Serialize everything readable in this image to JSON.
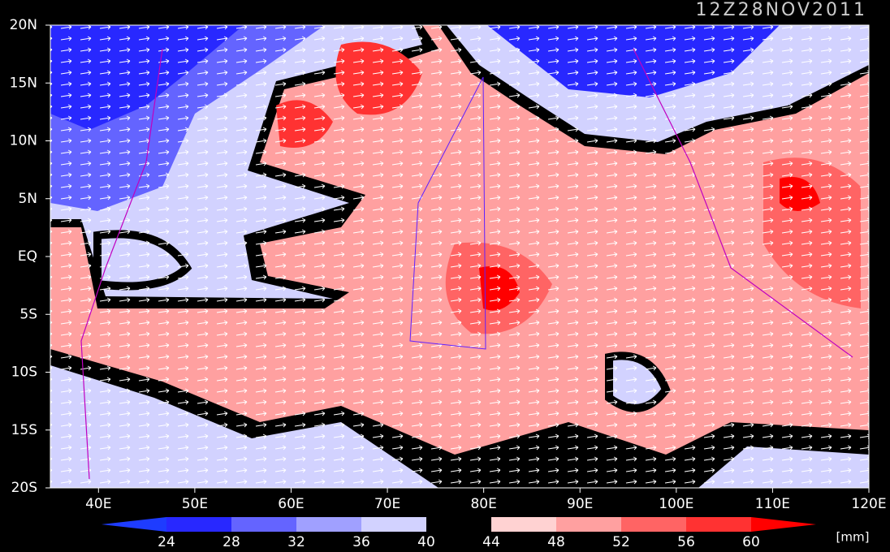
{
  "timestamp": "12Z28NOV2011",
  "lat_labels": [
    "20N",
    "15N",
    "10N",
    "5N",
    "EQ",
    "5S",
    "10S",
    "15S",
    "20S"
  ],
  "lon_labels": [
    "40E",
    "50E",
    "60E",
    "70E",
    "80E",
    "90E",
    "100E",
    "110E",
    "120E"
  ],
  "colorbar": {
    "levels": [
      24,
      28,
      32,
      36,
      40,
      44,
      48,
      52,
      56,
      60
    ],
    "colors": [
      "#1e3cff",
      "#2828ff",
      "#6464ff",
      "#a0a0ff",
      "#d2d2ff",
      "#000000",
      "#ffd2d2",
      "#ffa0a0",
      "#ff6464",
      "#ff3232",
      "#ff0000"
    ],
    "unit": "[mm]"
  }
}
